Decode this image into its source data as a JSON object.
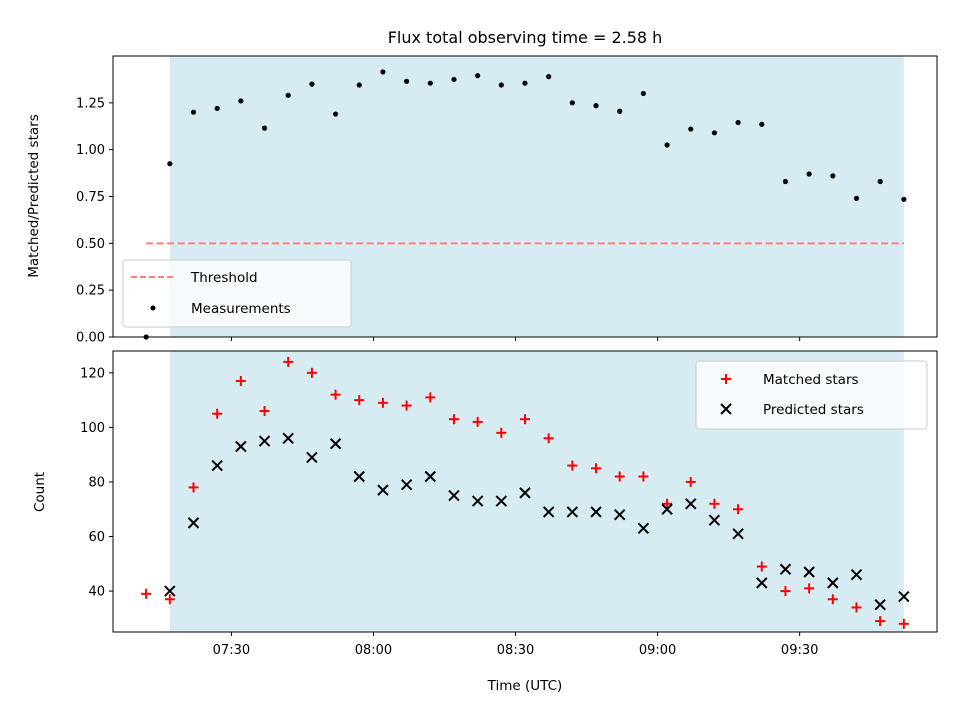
{
  "chart_data": [
    {
      "type": "scatter",
      "title": "Flux total observing time = 2.58 h",
      "xlabel": "",
      "ylabel": "Matched/Predicted stars",
      "xlim": [
        "07:05",
        "09:59"
      ],
      "ylim": [
        0,
        1.5
      ],
      "yticks": [
        0.0,
        0.25,
        0.5,
        0.75,
        1.0,
        1.25
      ],
      "ytick_labels": [
        "0.00",
        "0.25",
        "0.50",
        "0.75",
        "1.00",
        "1.25"
      ],
      "observing_window": [
        "07:17",
        "09:52"
      ],
      "threshold": {
        "name": "Threshold",
        "value": 0.5,
        "x": [
          "07:12",
          "09:52"
        ],
        "color": "#ff7f7f",
        "style": "dashed"
      },
      "series": [
        {
          "name": "Measurements",
          "color": "#000000",
          "marker": "dot",
          "x": [
            "07:12",
            "07:17",
            "07:22",
            "07:27",
            "07:32",
            "07:37",
            "07:42",
            "07:47",
            "07:52",
            "07:57",
            "08:02",
            "08:07",
            "08:12",
            "08:17",
            "08:22",
            "08:27",
            "08:32",
            "08:37",
            "08:42",
            "08:47",
            "08:52",
            "08:57",
            "09:02",
            "09:07",
            "09:12",
            "09:17",
            "09:22",
            "09:27",
            "09:32",
            "09:37",
            "09:42",
            "09:47",
            "09:52"
          ],
          "values": [
            0.0,
            0.925,
            1.2,
            1.22,
            1.26,
            1.115,
            1.29,
            1.35,
            1.19,
            1.345,
            1.415,
            1.365,
            1.355,
            1.375,
            1.395,
            1.345,
            1.355,
            1.39,
            1.25,
            1.235,
            1.205,
            1.3,
            1.025,
            1.11,
            1.09,
            1.145,
            1.135,
            0.83,
            0.87,
            0.86,
            0.74,
            0.83,
            0.735
          ]
        }
      ],
      "legend": {
        "position": "lower-left",
        "entries": [
          "Threshold",
          "Measurements"
        ]
      },
      "grid": false
    },
    {
      "type": "scatter",
      "title": "",
      "xlabel": "Time (UTC)",
      "ylabel": "Count",
      "xlim": [
        "07:05",
        "09:59"
      ],
      "ylim": [
        25,
        128
      ],
      "xticks": [
        "07:30",
        "08:00",
        "08:30",
        "09:00",
        "09:30"
      ],
      "yticks": [
        40,
        60,
        80,
        100,
        120
      ],
      "ytick_labels": [
        "40",
        "60",
        "80",
        "100",
        "120"
      ],
      "observing_window": [
        "07:17",
        "09:52"
      ],
      "series": [
        {
          "name": "Matched stars",
          "color": "#ff0000",
          "marker": "plus",
          "x": [
            "07:12",
            "07:17",
            "07:22",
            "07:27",
            "07:32",
            "07:37",
            "07:42",
            "07:47",
            "07:52",
            "07:57",
            "08:02",
            "08:07",
            "08:12",
            "08:17",
            "08:22",
            "08:27",
            "08:32",
            "08:37",
            "08:42",
            "08:47",
            "08:52",
            "08:57",
            "09:02",
            "09:07",
            "09:12",
            "09:17",
            "09:22",
            "09:27",
            "09:32",
            "09:37",
            "09:42",
            "09:47",
            "09:52"
          ],
          "values": [
            39,
            37,
            78,
            105,
            117,
            106,
            124,
            120,
            112,
            110,
            109,
            108,
            111,
            103,
            102,
            98,
            103,
            96,
            86,
            85,
            82,
            82,
            72,
            80,
            72,
            70,
            49,
            40,
            41,
            37,
            34,
            29,
            28
          ]
        },
        {
          "name": "Predicted stars",
          "color": "#000000",
          "marker": "x",
          "x": [
            "07:17",
            "07:22",
            "07:27",
            "07:32",
            "07:37",
            "07:42",
            "07:47",
            "07:52",
            "07:57",
            "08:02",
            "08:07",
            "08:12",
            "08:17",
            "08:22",
            "08:27",
            "08:32",
            "08:37",
            "08:42",
            "08:47",
            "08:52",
            "08:57",
            "09:02",
            "09:07",
            "09:12",
            "09:17",
            "09:22",
            "09:27",
            "09:32",
            "09:37",
            "09:42",
            "09:47",
            "09:52"
          ],
          "values": [
            40,
            65,
            86,
            93,
            95,
            96,
            89,
            94,
            82,
            77,
            79,
            82,
            75,
            73,
            73,
            76,
            69,
            69,
            69,
            68,
            63,
            70,
            72,
            66,
            61,
            43,
            48,
            47,
            43,
            46,
            35,
            38
          ]
        }
      ],
      "legend": {
        "position": "top-right",
        "entries": [
          "Matched stars",
          "Predicted stars"
        ]
      },
      "grid": false
    }
  ],
  "colors": {
    "observing_window": "#add8e6"
  }
}
